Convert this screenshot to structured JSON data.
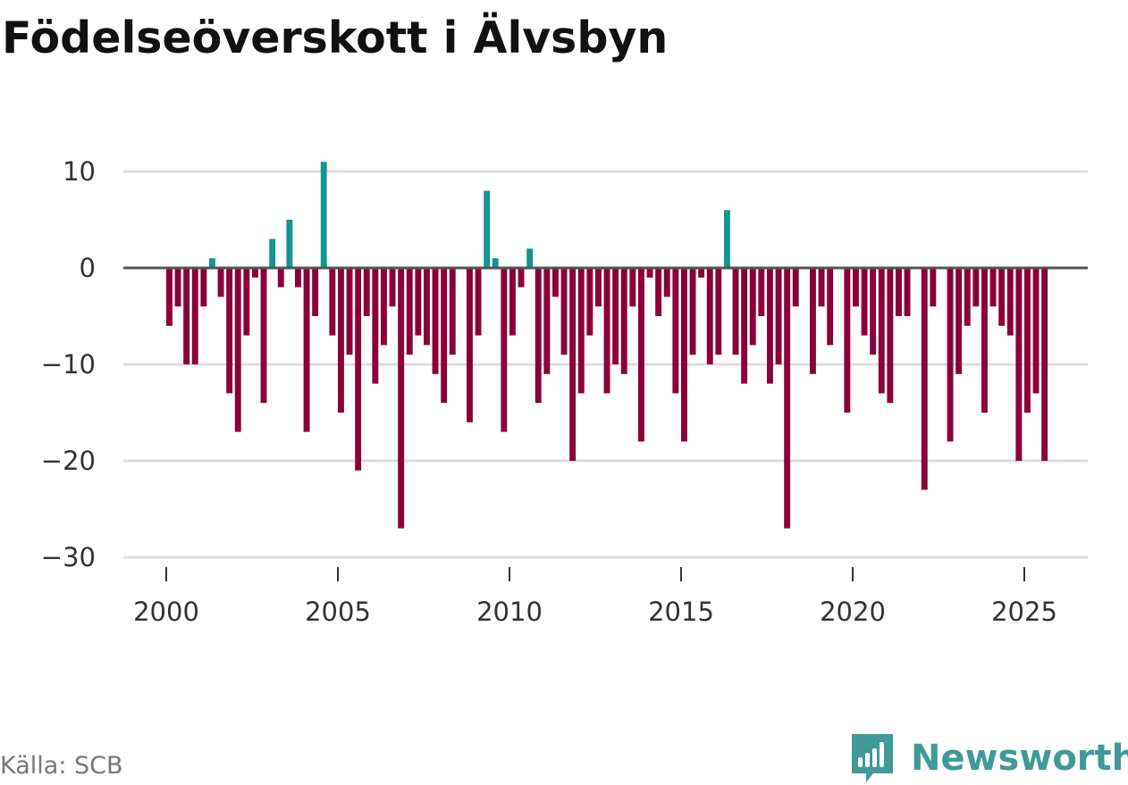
{
  "title": "Födelseöverskott i Älvsbyn",
  "source": "Källa: SCB",
  "brand": {
    "name": "Newsworthy",
    "logo_icon": "newsworthy-bar-chart-icon"
  },
  "colors": {
    "positive": "#13968f",
    "negative": "#8b0038",
    "grid": "#dddddd",
    "zero_line": "#555555"
  },
  "chart_data": {
    "type": "bar",
    "title": "Födelseöverskott i Älvsbyn",
    "xlabel": "",
    "ylabel": "",
    "frequency": "quarterly",
    "start": "2000Q1",
    "ylim": [
      -30,
      12
    ],
    "yticks": [
      10,
      0,
      -10,
      -20,
      -30
    ],
    "ytick_labels": [
      "10",
      "0",
      "−10",
      "−20",
      "−30"
    ],
    "xticks": [
      2000,
      2005,
      2010,
      2015,
      2020,
      2025
    ],
    "xtick_labels": [
      "2000",
      "2005",
      "2010",
      "2015",
      "2020",
      "2025"
    ],
    "values": [
      -6,
      -4,
      -10,
      -10,
      -4,
      1,
      -3,
      -13,
      -17,
      -7,
      -1,
      -14,
      3,
      -2,
      5,
      -2,
      -17,
      -5,
      11,
      -7,
      -15,
      -9,
      -21,
      -5,
      -12,
      -8,
      -4,
      -27,
      -9,
      -7,
      -8,
      -11,
      -14,
      -9,
      0,
      -16,
      -7,
      8,
      1,
      -17,
      -7,
      -2,
      2,
      -14,
      -11,
      -3,
      -9,
      -20,
      -13,
      -7,
      -4,
      -13,
      -10,
      -11,
      -4,
      -18,
      -1,
      -5,
      -3,
      -13,
      -18,
      -9,
      -1,
      -10,
      -9,
      6,
      -9,
      -12,
      -8,
      -5,
      -12,
      -10,
      -27,
      -4,
      0,
      -11,
      -4,
      -8,
      0,
      -15,
      -4,
      -7,
      -9,
      -13,
      -14,
      -5,
      -5,
      0,
      -23,
      -4,
      0,
      -18,
      -11,
      -6,
      -4,
      -15,
      -4,
      -6,
      -7,
      -20,
      -15,
      -13,
      -20
    ]
  }
}
